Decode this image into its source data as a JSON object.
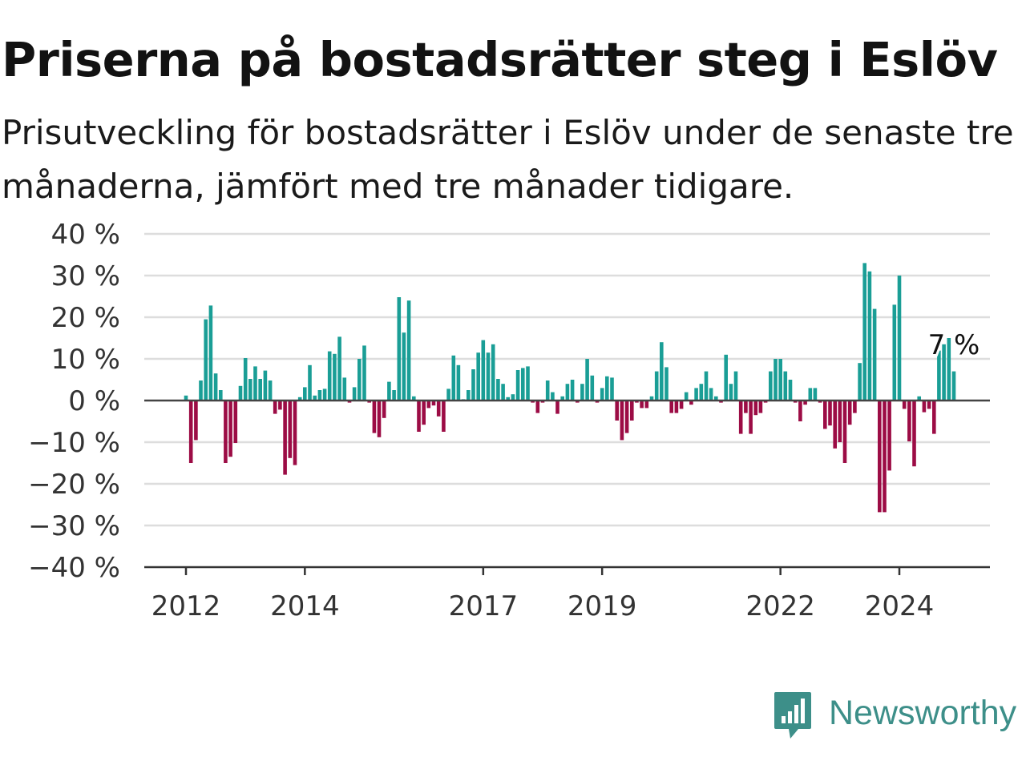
{
  "title": "Priserna på bostadsrätter steg i Eslöv",
  "subtitle": "Prisutveckling för bostadsrätter i Eslöv under de senaste tre månaderna, jämfört med tre månader tidigare.",
  "brand": "Newsworthy",
  "colors": {
    "positive": "#1a9e96",
    "negative": "#9c0c45",
    "grid": "#dddddd",
    "brand": "#3d8f89"
  },
  "chart_data": {
    "type": "bar",
    "ylim": [
      -40,
      40
    ],
    "yticks": [
      "40 %",
      "30 %",
      "20 %",
      "10 %",
      "0 %",
      "−10 %",
      "−20 %",
      "−30 %",
      "−40 %"
    ],
    "xticks": [
      "2012",
      "2014",
      "2017",
      "2019",
      "2022",
      "2024"
    ],
    "annotation": "7 %",
    "x": [
      "2012-01",
      "2012-02",
      "2012-03",
      "2012-04",
      "2012-05",
      "2012-06",
      "2012-07",
      "2012-08",
      "2012-09",
      "2012-10",
      "2012-11",
      "2012-12",
      "2013-01",
      "2013-02",
      "2013-03",
      "2013-04",
      "2013-05",
      "2013-06",
      "2013-07",
      "2013-08",
      "2013-09",
      "2013-10",
      "2013-11",
      "2013-12",
      "2014-01",
      "2014-02",
      "2014-03",
      "2014-04",
      "2014-05",
      "2014-06",
      "2014-07",
      "2014-08",
      "2014-09",
      "2014-10",
      "2014-11",
      "2014-12",
      "2015-01",
      "2015-02",
      "2015-03",
      "2015-04",
      "2015-05",
      "2015-06",
      "2015-07",
      "2015-08",
      "2015-09",
      "2015-10",
      "2015-11",
      "2015-12",
      "2016-01",
      "2016-02",
      "2016-03",
      "2016-04",
      "2016-05",
      "2016-06",
      "2016-07",
      "2016-08",
      "2016-09",
      "2016-10",
      "2016-11",
      "2016-12",
      "2017-01",
      "2017-02",
      "2017-03",
      "2017-04",
      "2017-05",
      "2017-06",
      "2017-07",
      "2017-08",
      "2017-09",
      "2017-10",
      "2017-11",
      "2017-12",
      "2018-01",
      "2018-02",
      "2018-03",
      "2018-04",
      "2018-05",
      "2018-06",
      "2018-07",
      "2018-08",
      "2018-09",
      "2018-10",
      "2018-11",
      "2018-12",
      "2019-01",
      "2019-02",
      "2019-03",
      "2019-04",
      "2019-05",
      "2019-06",
      "2019-07",
      "2019-08",
      "2019-09",
      "2019-10",
      "2019-11",
      "2019-12",
      "2020-01",
      "2020-02",
      "2020-03",
      "2020-04",
      "2020-05",
      "2020-06",
      "2020-07",
      "2020-08",
      "2020-09",
      "2020-10",
      "2020-11",
      "2020-12",
      "2021-01",
      "2021-02",
      "2021-03",
      "2021-04",
      "2021-05",
      "2021-06",
      "2021-07",
      "2021-08",
      "2021-09",
      "2021-10",
      "2021-11",
      "2021-12",
      "2022-01",
      "2022-02",
      "2022-03",
      "2022-04",
      "2022-05",
      "2022-06",
      "2022-07",
      "2022-08",
      "2022-09",
      "2022-10",
      "2022-11",
      "2022-12",
      "2023-01",
      "2023-02",
      "2023-03",
      "2023-04",
      "2023-05",
      "2023-06",
      "2023-07",
      "2023-08",
      "2023-09",
      "2023-10",
      "2023-11",
      "2023-12",
      "2024-01",
      "2024-02",
      "2024-03",
      "2024-04",
      "2024-05",
      "2024-06",
      "2024-07",
      "2024-08",
      "2024-09",
      "2024-10",
      "2024-11",
      "2024-12"
    ],
    "values": [
      1.2,
      -15.0,
      -9.5,
      4.8,
      19.5,
      22.8,
      6.5,
      2.5,
      -15.0,
      -13.5,
      -10.2,
      3.5,
      10.2,
      5.2,
      8.2,
      5.2,
      7.2,
      4.8,
      -3.2,
      -2.2,
      -17.8,
      -13.8,
      -15.5,
      0.8,
      3.2,
      8.5,
      1.2,
      2.5,
      2.8,
      11.8,
      11.2,
      15.3,
      5.5,
      -0.5,
      3.2,
      10.0,
      13.2,
      -0.5,
      -7.8,
      -8.8,
      -4.2,
      4.5,
      2.5,
      24.8,
      16.3,
      24.0,
      1.0,
      -7.5,
      -5.8,
      -1.8,
      -1.2,
      -3.8,
      -7.5,
      2.8,
      10.8,
      8.5,
      0.3,
      2.5,
      7.5,
      11.5,
      14.5,
      11.5,
      13.5,
      5.2,
      4.0,
      0.8,
      1.5,
      7.3,
      7.8,
      8.2,
      -0.5,
      -3.0,
      -0.5,
      4.8,
      2.0,
      -3.2,
      1.0,
      4.0,
      5.0,
      -0.5,
      4.0,
      10.0,
      6.0,
      -0.5,
      3.0,
      5.8,
      5.5,
      -4.8,
      -9.5,
      -7.8,
      -4.8,
      -0.5,
      -1.8,
      -1.8,
      1.0,
      7.0,
      14.0,
      8.0,
      -3.0,
      -3.0,
      -2.0,
      2.0,
      -1.0,
      3.0,
      4.0,
      7.0,
      3.0,
      1.0,
      -0.5,
      11.0,
      4.0,
      7.0,
      -8.0,
      -3.0,
      -8.0,
      -3.5,
      -3.0,
      -0.5,
      7.0,
      10.0,
      10.0,
      7.0,
      5.0,
      -0.5,
      -5.0,
      -1.0,
      3.0,
      3.0,
      -0.5,
      -6.8,
      -6.0,
      -11.5,
      -10.0,
      -15.0,
      -5.8,
      -3.0,
      9.0,
      33.0,
      31.0,
      22.0,
      -26.8,
      -26.8,
      -16.8,
      23.0,
      30.0,
      -2.0,
      -9.8,
      -15.8,
      1.0,
      -2.8,
      -2.0,
      -8.0,
      12.0,
      13.5,
      15.0,
      7.0
    ]
  }
}
